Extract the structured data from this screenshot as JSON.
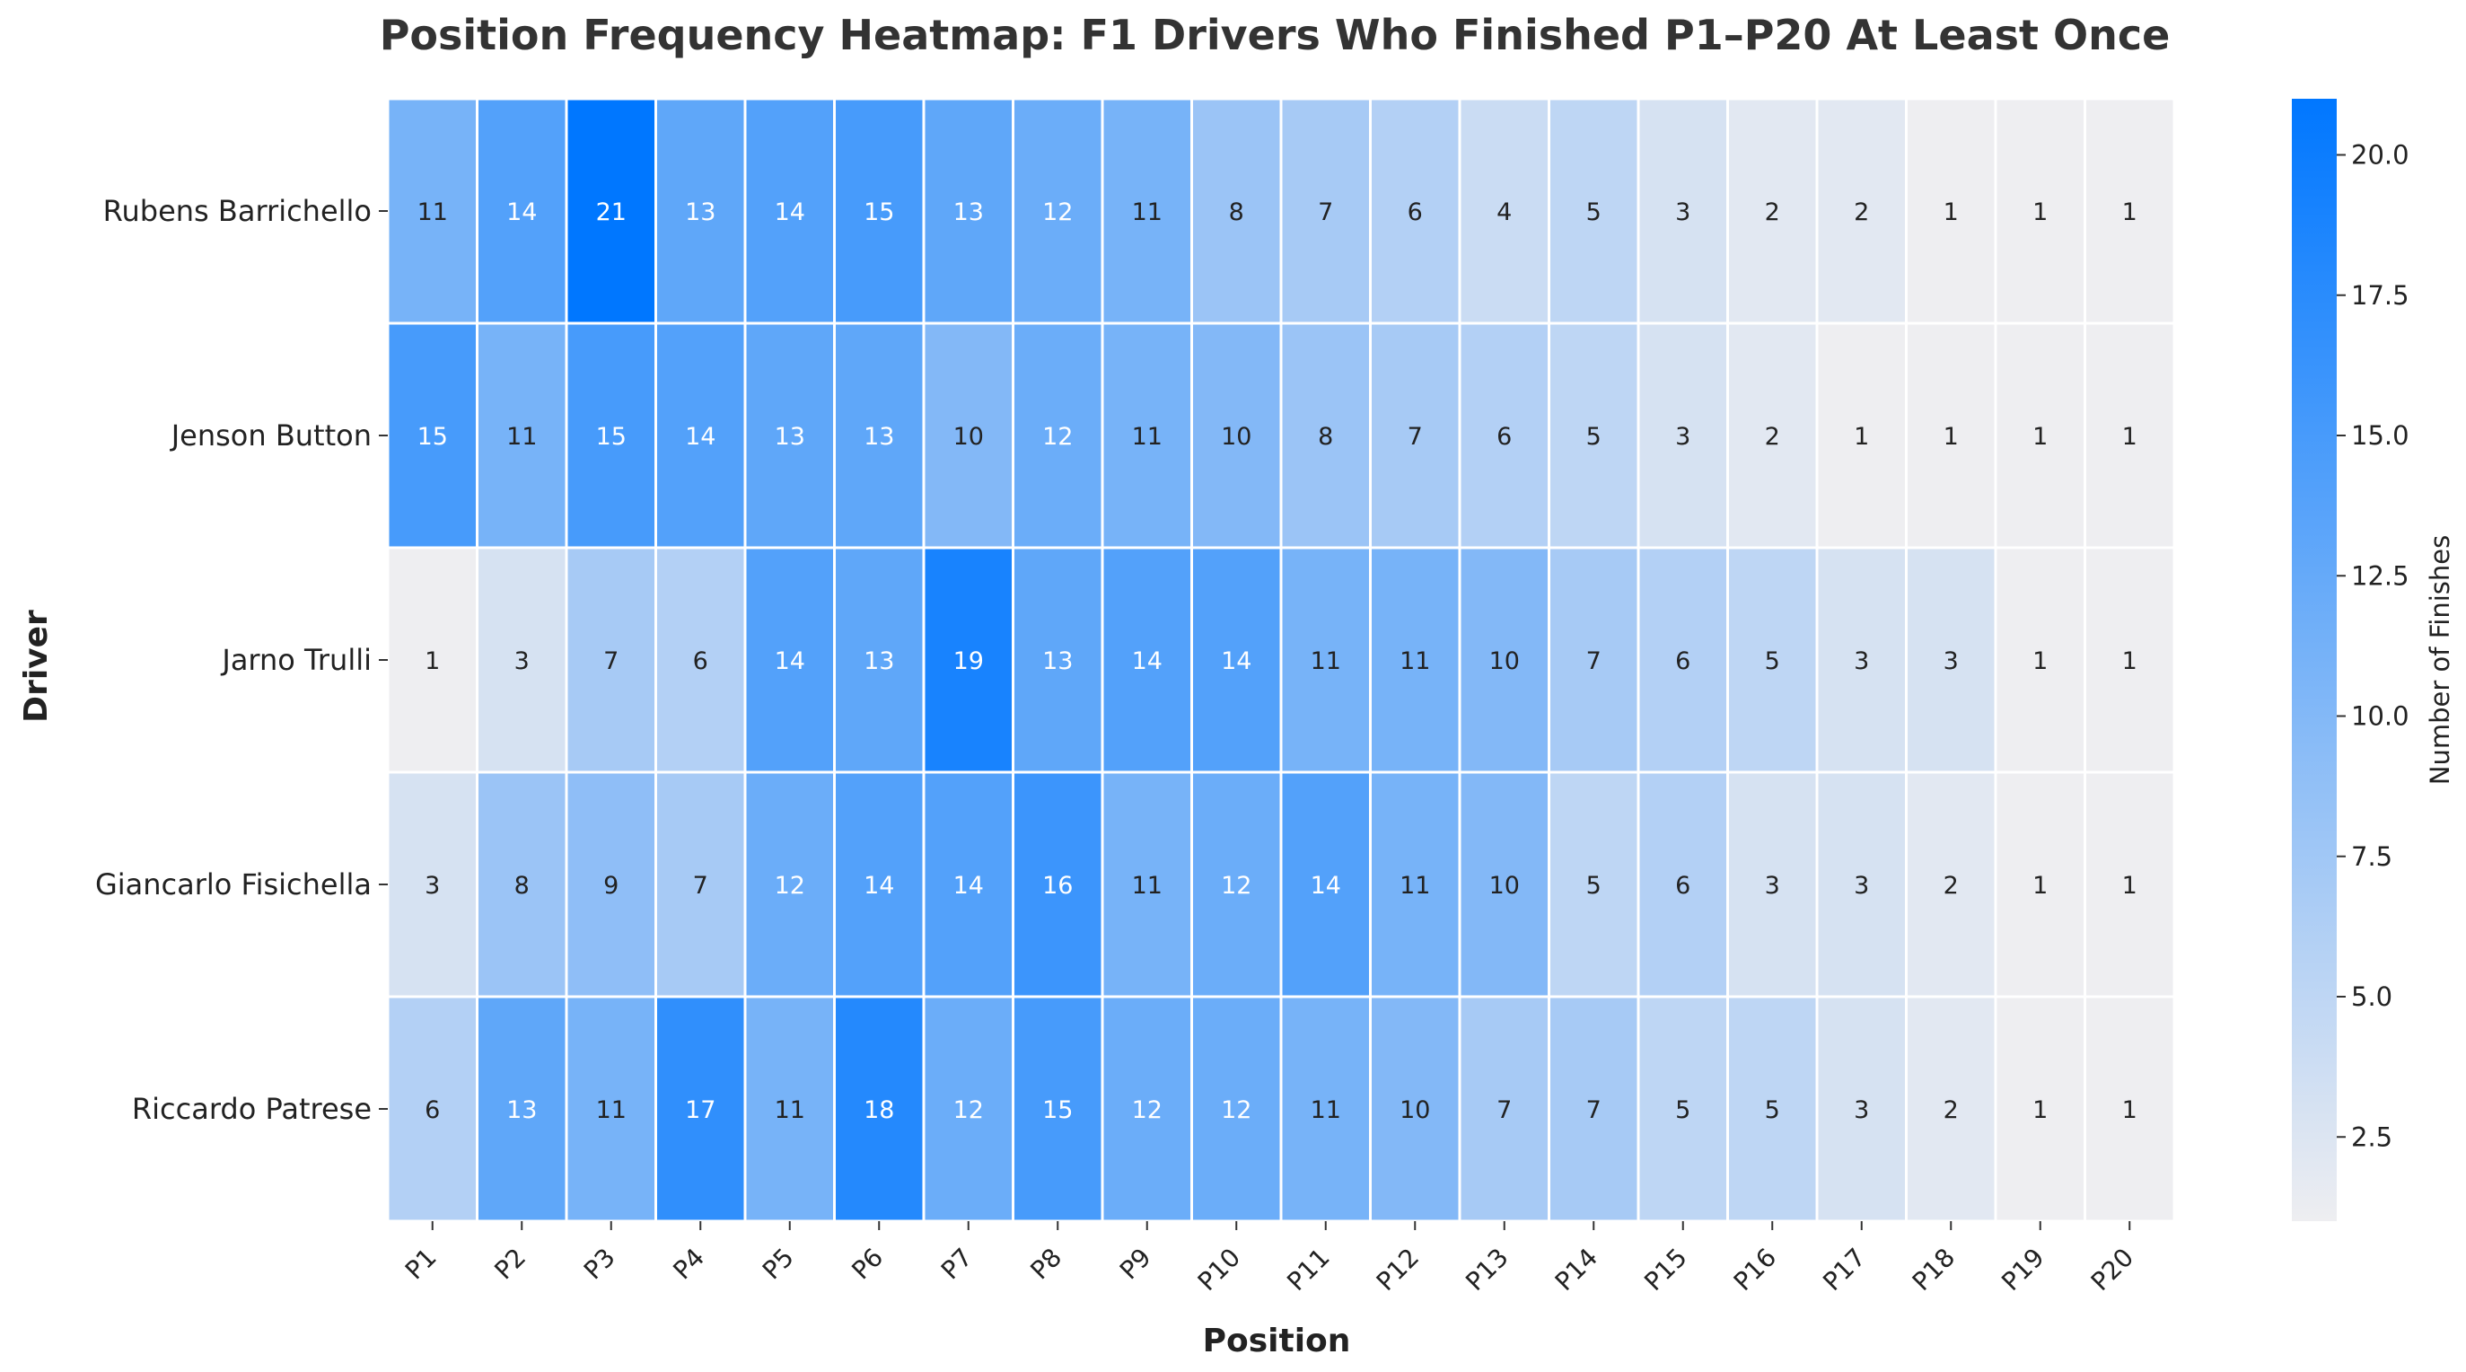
{
  "chart_data": {
    "type": "heatmap",
    "title": "Position Frequency Heatmap: F1 Drivers Who Finished P1–P20 At Least Once",
    "xlabel": "Position",
    "ylabel": "Driver",
    "colorbar_label": "Number of Finishes",
    "x_categories": [
      "P1",
      "P2",
      "P3",
      "P4",
      "P5",
      "P6",
      "P7",
      "P8",
      "P9",
      "P10",
      "P11",
      "P12",
      "P13",
      "P14",
      "P15",
      "P16",
      "P17",
      "P18",
      "P19",
      "P20"
    ],
    "y_categories": [
      "Rubens Barrichello",
      "Jenson Button",
      "Jarno Trulli",
      "Giancarlo Fisichella",
      "Riccardo Patrese"
    ],
    "values": [
      [
        11,
        14,
        21,
        13,
        14,
        15,
        13,
        12,
        11,
        8,
        7,
        6,
        4,
        5,
        3,
        2,
        2,
        1,
        1,
        1
      ],
      [
        15,
        11,
        15,
        14,
        13,
        13,
        10,
        12,
        11,
        10,
        8,
        7,
        6,
        5,
        3,
        2,
        1,
        1,
        1,
        1
      ],
      [
        1,
        3,
        7,
        6,
        14,
        13,
        19,
        13,
        14,
        14,
        11,
        11,
        10,
        7,
        6,
        5,
        3,
        3,
        1,
        1
      ],
      [
        3,
        8,
        9,
        7,
        12,
        14,
        14,
        16,
        11,
        12,
        14,
        11,
        10,
        5,
        6,
        3,
        3,
        2,
        1,
        1
      ],
      [
        6,
        13,
        11,
        17,
        11,
        18,
        12,
        15,
        12,
        12,
        11,
        10,
        7,
        7,
        5,
        5,
        3,
        2,
        1,
        1
      ]
    ],
    "color_range": [
      1,
      21
    ],
    "colorbar_ticks": [
      "2.5",
      "5.0",
      "7.5",
      "10.0",
      "12.5",
      "15.0",
      "17.5",
      "20.0"
    ],
    "colorscale": {
      "low": "#eeeef1",
      "high": "#0077ff"
    },
    "annotated": true,
    "grid": false
  }
}
